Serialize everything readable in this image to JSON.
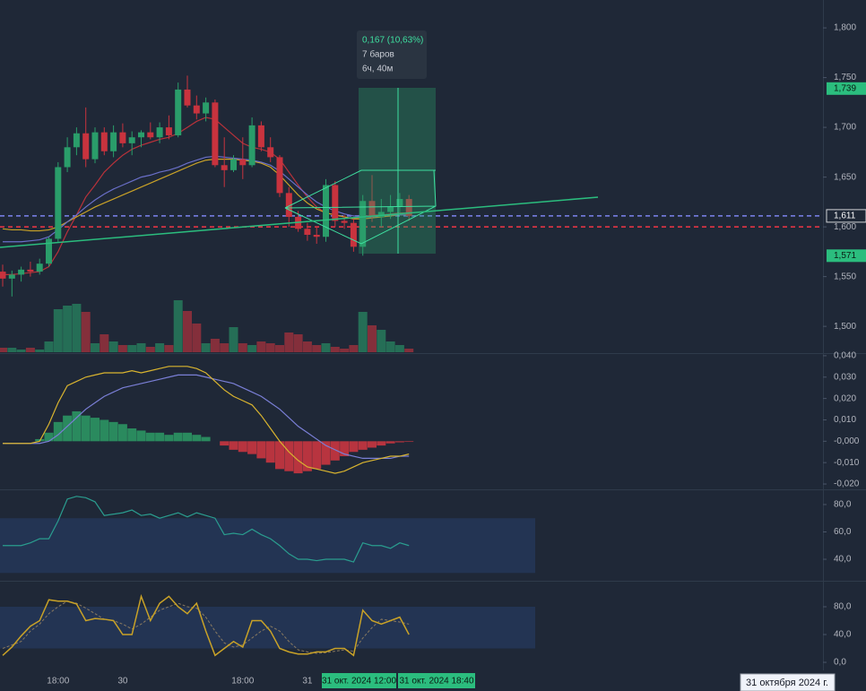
{
  "chart_data": [
    {
      "type": "candlestick",
      "categories": [
        null,
        null,
        null,
        null,
        null,
        null,
        "18:00",
        null,
        null,
        null,
        null,
        null,
        null,
        "30",
        null,
        null,
        null,
        null,
        null,
        null,
        null,
        null,
        null,
        null,
        null,
        null,
        "18:00",
        null,
        null,
        null,
        null,
        null,
        null,
        "31",
        null,
        null,
        null,
        null,
        null,
        null,
        null,
        null,
        null,
        null,
        null
      ],
      "open": [
        1.555,
        1.548,
        1.552,
        1.557,
        1.555,
        1.563,
        1.588,
        1.66,
        1.68,
        1.694,
        1.668,
        1.695,
        1.676,
        1.695,
        1.684,
        1.69,
        1.695,
        1.69,
        1.7,
        1.692,
        1.738,
        1.722,
        1.714,
        1.725,
        1.662,
        1.657,
        1.668,
        1.662,
        1.702,
        1.68,
        1.67,
        1.634,
        1.61,
        1.598,
        1.592,
        1.59,
        1.642,
        1.606,
        1.604,
        1.58,
        1.626,
        1.61,
        1.615,
        1.62,
        1.628
      ],
      "high": [
        1.562,
        1.556,
        1.56,
        1.565,
        1.568,
        1.59,
        1.665,
        1.69,
        1.7,
        1.72,
        1.7,
        1.7,
        1.702,
        1.704,
        1.696,
        1.697,
        1.705,
        1.705,
        1.712,
        1.745,
        1.752,
        1.732,
        1.73,
        1.728,
        1.69,
        1.672,
        1.69,
        1.71,
        1.706,
        1.69,
        1.672,
        1.64,
        1.616,
        1.604,
        1.6,
        1.648,
        1.646,
        1.612,
        1.608,
        1.632,
        1.652,
        1.628,
        1.632,
        1.634,
        1.632
      ],
      "low": [
        1.54,
        1.53,
        1.545,
        1.55,
        1.552,
        1.56,
        1.585,
        1.655,
        1.672,
        1.66,
        1.664,
        1.672,
        1.67,
        1.68,
        1.672,
        1.68,
        1.688,
        1.684,
        1.688,
        1.69,
        1.72,
        1.708,
        1.706,
        1.66,
        1.64,
        1.655,
        1.648,
        1.66,
        1.676,
        1.665,
        1.63,
        1.6,
        1.595,
        1.586,
        1.583,
        1.585,
        1.6,
        1.598,
        1.575,
        1.571,
        1.605,
        1.6,
        1.608,
        1.612,
        1.606
      ],
      "close": [
        1.548,
        1.552,
        1.557,
        1.555,
        1.563,
        1.588,
        1.66,
        1.68,
        1.694,
        1.668,
        1.695,
        1.676,
        1.695,
        1.684,
        1.69,
        1.695,
        1.69,
        1.7,
        1.692,
        1.738,
        1.722,
        1.714,
        1.725,
        1.662,
        1.657,
        1.668,
        1.662,
        1.702,
        1.68,
        1.67,
        1.634,
        1.61,
        1.598,
        1.592,
        1.59,
        1.642,
        1.606,
        1.604,
        1.58,
        1.626,
        1.61,
        1.615,
        1.62,
        1.628,
        1.611
      ],
      "up_color": "#2a9d6a",
      "down_color": "#c8333e",
      "series": [
        {
          "color": "#b8323a",
          "values": [
            1.552,
            1.552,
            1.553,
            1.554,
            1.555,
            1.56,
            1.575,
            1.595,
            1.612,
            1.63,
            1.642,
            1.655,
            1.664,
            1.672,
            1.678,
            1.682,
            1.685,
            1.688,
            1.69,
            1.694,
            1.7,
            1.706,
            1.71,
            1.708,
            1.7,
            1.692,
            1.684,
            1.68,
            1.678,
            1.675,
            1.668,
            1.655,
            1.642,
            1.63,
            1.62,
            1.614,
            1.612,
            1.61,
            1.608,
            1.61,
            1.612,
            1.612,
            1.613,
            1.614,
            1.614
          ]
        },
        {
          "color": "#c9a227",
          "values": [
            1.598,
            1.597,
            1.597,
            1.596,
            1.596,
            1.597,
            1.6,
            1.605,
            1.61,
            1.615,
            1.62,
            1.624,
            1.628,
            1.632,
            1.636,
            1.64,
            1.644,
            1.648,
            1.652,
            1.656,
            1.66,
            1.664,
            1.667,
            1.668,
            1.668,
            1.668,
            1.667,
            1.666,
            1.664,
            1.66,
            1.652,
            1.642,
            1.632,
            1.624,
            1.618,
            1.614,
            1.612,
            1.61,
            1.608,
            1.608,
            1.609,
            1.61,
            1.611,
            1.612,
            1.612
          ]
        },
        {
          "color": "#6a6fc9",
          "values": [
            1.585,
            1.585,
            1.585,
            1.586,
            1.587,
            1.59,
            1.597,
            1.605,
            1.612,
            1.62,
            1.627,
            1.633,
            1.638,
            1.642,
            1.646,
            1.65,
            1.652,
            1.655,
            1.657,
            1.66,
            1.664,
            1.667,
            1.67,
            1.671,
            1.67,
            1.669,
            1.668,
            1.667,
            1.665,
            1.662,
            1.656,
            1.648,
            1.64,
            1.632,
            1.625,
            1.62,
            1.616,
            1.613,
            1.611,
            1.61,
            1.61,
            1.611,
            1.612,
            1.612,
            1.612
          ]
        }
      ],
      "volume": {
        "ylim": [
          0,
          60
        ],
        "values": [
          5,
          5,
          3,
          5,
          3,
          12,
          48,
          52,
          54,
          45,
          10,
          20,
          12,
          8,
          8,
          10,
          6,
          10,
          8,
          58,
          46,
          32,
          10,
          15,
          10,
          28,
          10,
          8,
          12,
          10,
          8,
          22,
          20,
          12,
          8,
          10,
          6,
          4,
          8,
          45,
          30,
          25,
          12,
          8,
          4
        ]
      },
      "ylim": [
        1.474,
        1.828
      ],
      "yticks": [
        {
          "value": 1.8,
          "label": "1,800"
        },
        {
          "value": 1.75,
          "label": "1,750"
        },
        {
          "value": 1.7,
          "label": "1,700"
        },
        {
          "value": 1.65,
          "label": "1,650"
        },
        {
          "value": 1.6,
          "label": "1,600"
        },
        {
          "value": 1.55,
          "label": "1,550"
        },
        {
          "value": 1.5,
          "label": "1,500"
        }
      ],
      "hlines": [
        {
          "value": 1.611,
          "color": "#7c83f0"
        },
        {
          "value": 1.6,
          "color": "#f23645"
        }
      ],
      "price_labels": [
        {
          "value": 1.739,
          "label": "1,739",
          "color": "#2bbd7e"
        },
        {
          "value": 1.611,
          "label": "1,611",
          "color": "#1f2837"
        },
        {
          "value": 1.571,
          "label": "1,571",
          "color": "#2bbd7e"
        }
      ],
      "measure_texts": [
        "0,167 (10,63%)",
        "7 баров",
        "6ч, 40м"
      ],
      "time_labels": [
        "31 окт. 2024 12:00",
        "31 окт. 2024 18:40"
      ],
      "date_label": "31 октября 2024 г."
    },
    {
      "type": "macd",
      "histogram": [
        0,
        0,
        0,
        0,
        0.001,
        0.004,
        0.009,
        0.012,
        0.014,
        0.012,
        0.011,
        0.01,
        0.009,
        0.008,
        0.006,
        0.005,
        0.004,
        0.004,
        0.003,
        0.004,
        0.004,
        0.003,
        0.002,
        0,
        -0.002,
        -0.004,
        -0.005,
        -0.006,
        -0.008,
        -0.01,
        -0.013,
        -0.014,
        -0.015,
        -0.014,
        -0.013,
        -0.011,
        -0.009,
        -0.007,
        -0.005,
        -0.004,
        -0.003,
        -0.002,
        -0.001,
        -0.0005,
        -0.0003
      ],
      "macd": [
        -0.001,
        -0.001,
        -0.001,
        -0.001,
        0.0,
        0.008,
        0.018,
        0.026,
        0.028,
        0.03,
        0.031,
        0.032,
        0.032,
        0.032,
        0.033,
        0.032,
        0.033,
        0.034,
        0.035,
        0.035,
        0.035,
        0.034,
        0.032,
        0.028,
        0.024,
        0.021,
        0.019,
        0.017,
        0.012,
        0.006,
        0.0,
        -0.005,
        -0.009,
        -0.012,
        -0.013,
        -0.014,
        -0.015,
        -0.014,
        -0.012,
        -0.01,
        -0.009,
        -0.008,
        -0.007,
        -0.007,
        -0.006
      ],
      "signal": [
        -0.001,
        -0.001,
        -0.001,
        -0.001,
        -0.001,
        0.0,
        0.003,
        0.007,
        0.011,
        0.015,
        0.018,
        0.021,
        0.023,
        0.025,
        0.026,
        0.027,
        0.028,
        0.029,
        0.03,
        0.031,
        0.031,
        0.031,
        0.03,
        0.029,
        0.028,
        0.027,
        0.025,
        0.023,
        0.021,
        0.018,
        0.015,
        0.011,
        0.007,
        0.004,
        0.001,
        -0.002,
        -0.004,
        -0.006,
        -0.007,
        -0.008,
        -0.008,
        -0.008,
        -0.008,
        -0.007,
        -0.007
      ],
      "macd_color": "#d9b42f",
      "signal_color": "#7a7fd6",
      "up_color": "#2a8a5e",
      "down_color": "#b8343f",
      "ylim": [
        -0.0225,
        0.0408
      ],
      "yticks": [
        {
          "value": 0.04,
          "label": "0,040"
        },
        {
          "value": 0.03,
          "label": "0,030"
        },
        {
          "value": 0.02,
          "label": "0,020"
        },
        {
          "value": 0.01,
          "label": "0,010"
        },
        {
          "value": 0,
          "label": "-0,000"
        },
        {
          "value": -0.01,
          "label": "-0,010"
        },
        {
          "value": -0.02,
          "label": "-0,020"
        }
      ]
    },
    {
      "type": "rsi",
      "values": [
        50,
        50,
        50,
        52,
        55,
        55,
        68,
        84,
        86,
        85,
        82,
        72,
        73,
        74,
        76,
        72,
        73,
        70,
        72,
        74,
        71,
        74,
        72,
        70,
        58,
        59,
        58,
        62,
        58,
        55,
        50,
        44,
        40,
        40,
        39,
        40,
        40,
        40,
        38,
        52,
        50,
        50,
        48,
        52,
        50
      ],
      "color": "#2a9d8f",
      "band": [
        30,
        70
      ],
      "ylim": [
        25.6,
        89.8
      ],
      "yticks": [
        {
          "value": 80,
          "label": "80,0"
        },
        {
          "value": 60,
          "label": "60,0"
        },
        {
          "value": 40,
          "label": "40,0"
        }
      ]
    },
    {
      "type": "stochastic",
      "k": [
        10,
        22,
        38,
        52,
        60,
        90,
        88,
        88,
        84,
        60,
        63,
        62,
        60,
        40,
        40,
        95,
        60,
        85,
        95,
        80,
        70,
        85,
        45,
        10,
        20,
        30,
        22,
        60,
        60,
        45,
        20,
        15,
        12,
        12,
        15,
        15,
        20,
        20,
        10,
        75,
        60,
        55,
        60,
        65,
        40
      ],
      "d": [
        20,
        25,
        30,
        45,
        55,
        70,
        80,
        88,
        85,
        78,
        70,
        62,
        60,
        55,
        48,
        55,
        65,
        75,
        80,
        85,
        80,
        78,
        65,
        45,
        28,
        22,
        25,
        35,
        45,
        52,
        45,
        30,
        18,
        15,
        13,
        14,
        16,
        18,
        16,
        35,
        50,
        62,
        60,
        58,
        55
      ],
      "k_color": "#c9a227",
      "d_color": "#8a7a60",
      "band": [
        20,
        80
      ],
      "ylim": [
        -9,
        114.8
      ],
      "yticks": [
        {
          "value": 80,
          "label": "80,0"
        },
        {
          "value": 40,
          "label": "40,0"
        },
        {
          "value": 0,
          "label": "0,0"
        }
      ]
    }
  ]
}
